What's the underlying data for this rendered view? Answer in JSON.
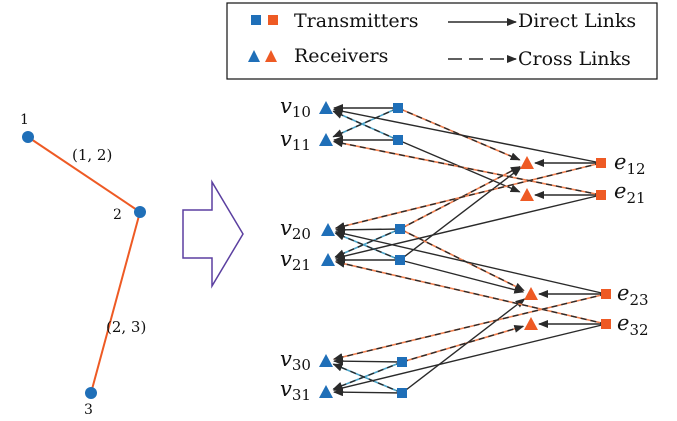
{
  "colors": {
    "blue": "#1f6fb8",
    "orange": "#ee5a24",
    "link": "#2a2a2a",
    "cross_blue": "#4aa3c8",
    "cross_orange": "#f08050",
    "arrow_outline": "#5b3fa0"
  },
  "legend": {
    "transmitters": "Transmitters",
    "receivers": "Receivers",
    "direct_links": "Direct Links",
    "cross_links": "Cross Links"
  },
  "graph": {
    "nodes": [
      {
        "id": "1",
        "label": "1"
      },
      {
        "id": "2",
        "label": "2"
      },
      {
        "id": "3",
        "label": "3"
      }
    ],
    "edges": [
      {
        "id": "e12",
        "label": "(1, 2)"
      },
      {
        "id": "e23",
        "label": "(2, 3)"
      }
    ]
  },
  "network": {
    "vertex_labels": [
      {
        "id": "v10",
        "base": "v",
        "sub": "10"
      },
      {
        "id": "v11",
        "base": "v",
        "sub": "11"
      },
      {
        "id": "v20",
        "base": "v",
        "sub": "20"
      },
      {
        "id": "v21",
        "base": "v",
        "sub": "21"
      },
      {
        "id": "v30",
        "base": "v",
        "sub": "30"
      },
      {
        "id": "v31",
        "base": "v",
        "sub": "31"
      }
    ],
    "edge_labels": [
      {
        "id": "e12",
        "base": "e",
        "sub": "12"
      },
      {
        "id": "e21",
        "base": "e",
        "sub": "21"
      },
      {
        "id": "e23",
        "base": "e",
        "sub": "23"
      },
      {
        "id": "e32",
        "base": "e",
        "sub": "32"
      }
    ]
  }
}
